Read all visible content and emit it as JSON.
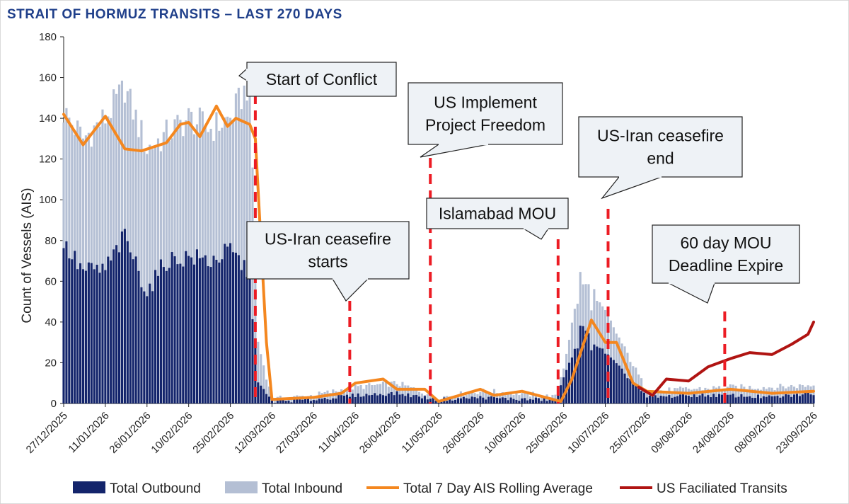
{
  "chart_data": {
    "type": "bar",
    "title": "STRAIT OF HORMUZ TRANSITS – LAST 270 DAYS",
    "ylabel": "Count of Vessels (AIS)",
    "ylim": [
      0,
      180
    ],
    "yticks": [
      0,
      20,
      40,
      60,
      80,
      100,
      120,
      140,
      160,
      180
    ],
    "x_range": [
      "27/12/2025",
      "23/09/2026"
    ],
    "xticks": [
      "27/12/2025",
      "11/01/2026",
      "26/01/2026",
      "10/02/2026",
      "25/02/2026",
      "12/03/2026",
      "27/03/2026",
      "11/04/2026",
      "26/04/2026",
      "11/05/2026",
      "26/05/2026",
      "10/06/2026",
      "25/06/2026",
      "10/07/2026",
      "25/07/2026",
      "09/08/2026",
      "24/08/2026",
      "08/09/2026",
      "23/09/2026"
    ],
    "series": [
      {
        "name": "Total Outbound",
        "type": "bar",
        "color": "#13246b",
        "points": [
          [
            "27/12/2025",
            78
          ],
          [
            "03/01/2026",
            65
          ],
          [
            "11/01/2026",
            66
          ],
          [
            "18/01/2026",
            82
          ],
          [
            "26/01/2026",
            55
          ],
          [
            "02/02/2026",
            70
          ],
          [
            "10/02/2026",
            72
          ],
          [
            "18/02/2026",
            70
          ],
          [
            "25/02/2026",
            75
          ],
          [
            "04/03/2026",
            64
          ],
          [
            "07/03/2026",
            10
          ],
          [
            "12/03/2026",
            1
          ],
          [
            "27/03/2026",
            2
          ],
          [
            "11/04/2026",
            4
          ],
          [
            "26/04/2026",
            5
          ],
          [
            "11/05/2026",
            2
          ],
          [
            "26/05/2026",
            3
          ],
          [
            "10/06/2026",
            2
          ],
          [
            "22/06/2026",
            2
          ],
          [
            "25/06/2026",
            12
          ],
          [
            "01/07/2026",
            35
          ],
          [
            "10/07/2026",
            25
          ],
          [
            "25/07/2026",
            3
          ],
          [
            "09/08/2026",
            4
          ],
          [
            "24/08/2026",
            4
          ],
          [
            "08/09/2026",
            3
          ],
          [
            "23/09/2026",
            5
          ]
        ]
      },
      {
        "name": "Total Inbound",
        "type": "bar",
        "color": "#b4bfd4",
        "points": [
          [
            "27/12/2025",
            143
          ],
          [
            "03/01/2026",
            130
          ],
          [
            "11/01/2026",
            140
          ],
          [
            "18/01/2026",
            155
          ],
          [
            "26/01/2026",
            125
          ],
          [
            "02/02/2026",
            132
          ],
          [
            "10/02/2026",
            140
          ],
          [
            "18/02/2026",
            135
          ],
          [
            "25/02/2026",
            140
          ],
          [
            "04/03/2026",
            158
          ],
          [
            "07/03/2026",
            30
          ],
          [
            "12/03/2026",
            2
          ],
          [
            "27/03/2026",
            4
          ],
          [
            "11/04/2026",
            8
          ],
          [
            "26/04/2026",
            10
          ],
          [
            "11/05/2026",
            3
          ],
          [
            "26/05/2026",
            6
          ],
          [
            "10/06/2026",
            5
          ],
          [
            "22/06/2026",
            3
          ],
          [
            "25/06/2026",
            18
          ],
          [
            "01/07/2026",
            60
          ],
          [
            "10/07/2026",
            45
          ],
          [
            "25/07/2026",
            6
          ],
          [
            "09/08/2026",
            7
          ],
          [
            "24/08/2026",
            8
          ],
          [
            "08/09/2026",
            8
          ],
          [
            "23/09/2026",
            9
          ]
        ]
      },
      {
        "name": "Total 7 Day AIS Rolling Average",
        "type": "line",
        "color": "#f4871f",
        "points": [
          [
            "27/12/2025",
            142
          ],
          [
            "03/01/2026",
            127
          ],
          [
            "11/01/2026",
            141
          ],
          [
            "18/01/2026",
            125
          ],
          [
            "24/01/2026",
            124
          ],
          [
            "02/02/2026",
            128
          ],
          [
            "07/02/2026",
            137
          ],
          [
            "10/02/2026",
            138
          ],
          [
            "14/02/2026",
            131
          ],
          [
            "20/02/2026",
            146
          ],
          [
            "24/02/2026",
            136
          ],
          [
            "27/02/2026",
            140
          ],
          [
            "04/03/2026",
            137
          ],
          [
            "06/03/2026",
            130
          ],
          [
            "08/03/2026",
            80
          ],
          [
            "10/03/2026",
            30
          ],
          [
            "12/03/2026",
            2
          ],
          [
            "27/03/2026",
            3
          ],
          [
            "06/04/2026",
            5
          ],
          [
            "11/04/2026",
            10
          ],
          [
            "21/04/2026",
            12
          ],
          [
            "26/04/2026",
            7
          ],
          [
            "06/05/2026",
            7
          ],
          [
            "11/05/2026",
            1
          ],
          [
            "26/05/2026",
            7
          ],
          [
            "31/05/2026",
            4
          ],
          [
            "10/06/2026",
            6
          ],
          [
            "24/06/2026",
            1
          ],
          [
            "28/06/2026",
            12
          ],
          [
            "05/07/2026",
            41
          ],
          [
            "10/07/2026",
            30
          ],
          [
            "14/07/2026",
            30
          ],
          [
            "20/07/2026",
            10
          ],
          [
            "25/07/2026",
            6
          ],
          [
            "09/08/2026",
            5
          ],
          [
            "24/08/2026",
            7
          ],
          [
            "08/09/2026",
            5
          ],
          [
            "23/09/2026",
            6
          ]
        ]
      },
      {
        "name": "US Faciliated Transits",
        "type": "line",
        "color": "#b01412",
        "points": [
          [
            "22/07/2026",
            8
          ],
          [
            "27/07/2026",
            4
          ],
          [
            "01/08/2026",
            12
          ],
          [
            "09/08/2026",
            11
          ],
          [
            "16/08/2026",
            18
          ],
          [
            "24/08/2026",
            22
          ],
          [
            "31/08/2026",
            25
          ],
          [
            "08/09/2026",
            24
          ],
          [
            "15/09/2026",
            29
          ],
          [
            "21/09/2026",
            34
          ],
          [
            "23/09/2026",
            40
          ]
        ]
      }
    ],
    "events": [
      {
        "date": "06/03/2026",
        "label": "Start of Conflict"
      },
      {
        "date": "09/04/2026",
        "label": "US-Iran ceasefire starts"
      },
      {
        "date": "08/05/2026",
        "label": "US Implement Project Freedom"
      },
      {
        "date": "23/06/2026",
        "label": "Islamabad MOU"
      },
      {
        "date": "11/07/2026",
        "label": "US-Iran ceasefire end"
      },
      {
        "date": "22/08/2026",
        "label": "60 day MOU Deadline Expire"
      }
    ],
    "callouts": [
      {
        "lines": [
          "Start of Conflict"
        ]
      },
      {
        "lines": [
          "US-Iran ceasefire",
          "starts"
        ]
      },
      {
        "lines": [
          "US Implement",
          "Project Freedom"
        ]
      },
      {
        "lines": [
          "Islamabad MOU"
        ]
      },
      {
        "lines": [
          "US-Iran ceasefire",
          "end"
        ]
      },
      {
        "lines": [
          "60 day MOU",
          "Deadline Expire"
        ]
      }
    ],
    "legend": [
      "Total Outbound",
      "Total Inbound",
      "Total 7 Day AIS Rolling Average",
      "US Faciliated Transits"
    ],
    "legend_placement": "bottom",
    "grid": false
  }
}
